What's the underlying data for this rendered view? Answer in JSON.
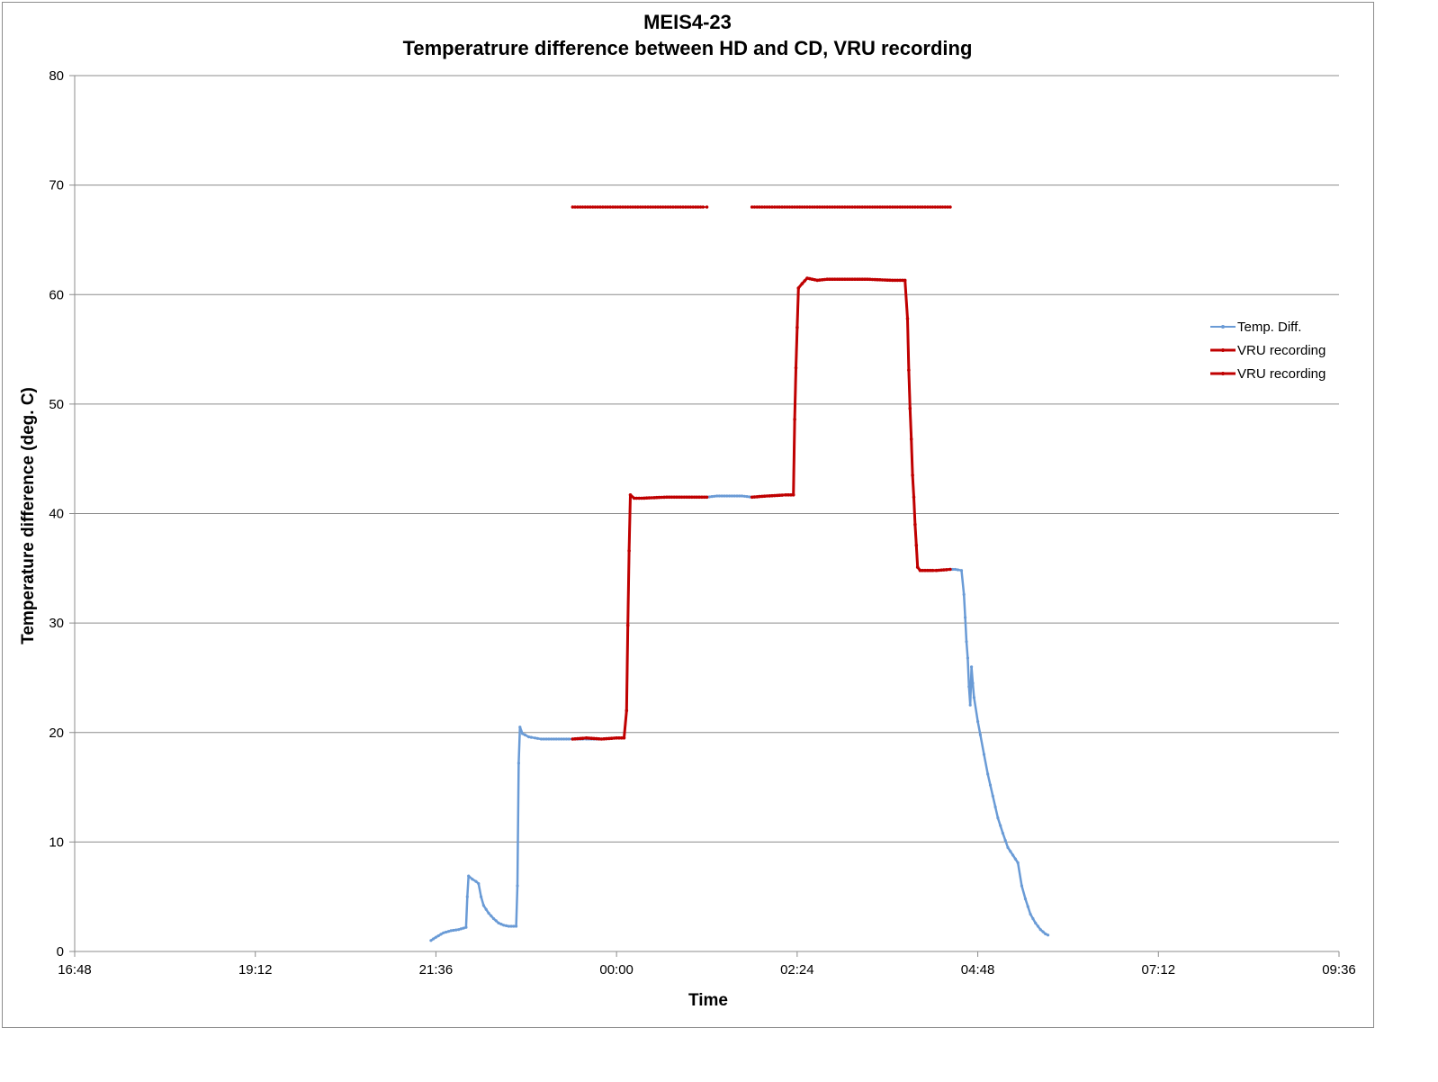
{
  "chart_data": {
    "type": "line",
    "title": "MEIS4-23",
    "subtitle": "Temperatrure difference between HD and CD, VRU recording",
    "xlabel": "Time",
    "ylabel": "Temperature difference (deg. C)",
    "ylim": [
      0,
      80
    ],
    "xlim": [
      "16:48",
      "09:36"
    ],
    "yticks": [
      "0",
      "10",
      "20",
      "30",
      "40",
      "50",
      "60",
      "70",
      "80"
    ],
    "xticks": [
      "16:48",
      "19:12",
      "21:36",
      "00:00",
      "02:24",
      "04:48",
      "07:12",
      "09:36"
    ],
    "grid": "horizontal",
    "legend_position": "right",
    "series": [
      {
        "name": "Temp. Diff.",
        "color": "#6a9bd6",
        "points": [
          [
            "21:32",
            1.0
          ],
          [
            "21:36",
            1.3
          ],
          [
            "21:42",
            1.7
          ],
          [
            "21:48",
            1.9
          ],
          [
            "21:54",
            2.0
          ],
          [
            "22:00",
            2.2
          ],
          [
            "22:01",
            5.0
          ],
          [
            "22:02",
            6.9
          ],
          [
            "22:05",
            6.6
          ],
          [
            "22:08",
            6.4
          ],
          [
            "22:10",
            6.2
          ],
          [
            "22:12",
            5.0
          ],
          [
            "22:14",
            4.2
          ],
          [
            "22:18",
            3.5
          ],
          [
            "22:22",
            3.0
          ],
          [
            "22:26",
            2.6
          ],
          [
            "22:30",
            2.4
          ],
          [
            "22:34",
            2.3
          ],
          [
            "22:40",
            2.3
          ],
          [
            "22:41",
            6.0
          ],
          [
            "22:42",
            17.2
          ],
          [
            "22:43",
            20.5
          ],
          [
            "22:45",
            19.9
          ],
          [
            "22:50",
            19.6
          ],
          [
            "22:55",
            19.5
          ],
          [
            "23:00",
            19.4
          ],
          [
            "23:10",
            19.4
          ],
          [
            "23:20",
            19.4
          ],
          [
            "23:25",
            19.4
          ],
          [
            "23:36",
            19.4
          ],
          [
            "23:48",
            19.4
          ],
          [
            "00:00",
            19.5
          ],
          [
            "00:06",
            19.5
          ],
          [
            "00:08",
            22.0
          ],
          [
            "00:09",
            29.8
          ],
          [
            "00:10",
            36.6
          ],
          [
            "00:11",
            41.7
          ],
          [
            "00:14",
            41.4
          ],
          [
            "00:20",
            41.4
          ],
          [
            "00:40",
            41.5
          ],
          [
            "01:00",
            41.5
          ],
          [
            "01:12",
            41.5
          ],
          [
            "01:20",
            41.6
          ],
          [
            "01:30",
            41.6
          ],
          [
            "01:40",
            41.6
          ],
          [
            "01:48",
            41.5
          ],
          [
            "02:00",
            41.6
          ],
          [
            "02:15",
            41.7
          ],
          [
            "02:21",
            41.7
          ],
          [
            "02:22",
            48.6
          ],
          [
            "02:23",
            53.3
          ],
          [
            "02:24",
            57.0
          ],
          [
            "02:25",
            60.6
          ],
          [
            "02:28",
            61.0
          ],
          [
            "02:32",
            61.5
          ],
          [
            "02:40",
            61.3
          ],
          [
            "02:48",
            61.4
          ],
          [
            "03:00",
            61.4
          ],
          [
            "03:20",
            61.4
          ],
          [
            "03:40",
            61.3
          ],
          [
            "03:50",
            61.3
          ],
          [
            "03:52",
            57.8
          ],
          [
            "03:53",
            53.1
          ],
          [
            "03:54",
            49.6
          ],
          [
            "03:55",
            46.8
          ],
          [
            "03:56",
            43.5
          ],
          [
            "03:57",
            41.5
          ],
          [
            "03:58",
            39.0
          ],
          [
            "03:59",
            37.1
          ],
          [
            "04:00",
            35.1
          ],
          [
            "04:02",
            34.8
          ],
          [
            "04:15",
            34.8
          ],
          [
            "04:26",
            34.9
          ],
          [
            "04:30",
            34.9
          ],
          [
            "04:35",
            34.8
          ],
          [
            "04:37",
            32.6
          ],
          [
            "04:38",
            30.5
          ],
          [
            "04:39",
            28.3
          ],
          [
            "04:40",
            26.8
          ],
          [
            "04:41",
            24.2
          ],
          [
            "04:42",
            22.5
          ],
          [
            "04:43",
            26.0
          ],
          [
            "04:44",
            24.5
          ],
          [
            "04:45",
            23.2
          ],
          [
            "04:48",
            21.0
          ],
          [
            "04:50",
            19.8
          ],
          [
            "04:53",
            18.0
          ],
          [
            "04:56",
            16.2
          ],
          [
            "05:00",
            14.2
          ],
          [
            "05:04",
            12.2
          ],
          [
            "05:08",
            10.8
          ],
          [
            "05:12",
            9.5
          ],
          [
            "05:16",
            8.8
          ],
          [
            "05:20",
            8.1
          ],
          [
            "05:23",
            6.0
          ],
          [
            "05:26",
            4.8
          ],
          [
            "05:30",
            3.4
          ],
          [
            "05:34",
            2.6
          ],
          [
            "05:38",
            2.0
          ],
          [
            "05:42",
            1.6
          ],
          [
            "05:44",
            1.5
          ]
        ]
      },
      {
        "name": "VRU recording",
        "color": "#c00000",
        "points": [
          [
            "23:25",
            19.4
          ],
          [
            "23:36",
            19.5
          ],
          [
            "23:48",
            19.4
          ],
          [
            "00:00",
            19.5
          ],
          [
            "00:06",
            19.5
          ],
          [
            "00:08",
            22.0
          ],
          [
            "00:09",
            29.8
          ],
          [
            "00:10",
            36.6
          ],
          [
            "00:11",
            41.7
          ],
          [
            "00:14",
            41.4
          ],
          [
            "00:20",
            41.4
          ],
          [
            "00:40",
            41.5
          ],
          [
            "01:00",
            41.5
          ],
          [
            "01:12",
            41.5
          ]
        ],
        "marker_points": [
          [
            "23:25",
            68
          ],
          [
            "01:12",
            68
          ]
        ]
      },
      {
        "name": "VRU recording",
        "color": "#c00000",
        "points": [
          [
            "01:48",
            41.5
          ],
          [
            "02:00",
            41.6
          ],
          [
            "02:15",
            41.7
          ],
          [
            "02:21",
            41.7
          ],
          [
            "02:22",
            48.6
          ],
          [
            "02:23",
            53.3
          ],
          [
            "02:24",
            57.0
          ],
          [
            "02:25",
            60.6
          ],
          [
            "02:28",
            61.0
          ],
          [
            "02:32",
            61.5
          ],
          [
            "02:40",
            61.3
          ],
          [
            "02:48",
            61.4
          ],
          [
            "03:00",
            61.4
          ],
          [
            "03:20",
            61.4
          ],
          [
            "03:40",
            61.3
          ],
          [
            "03:50",
            61.3
          ],
          [
            "03:52",
            57.8
          ],
          [
            "03:53",
            53.1
          ],
          [
            "03:54",
            49.6
          ],
          [
            "03:55",
            46.8
          ],
          [
            "03:56",
            43.5
          ],
          [
            "03:57",
            41.5
          ],
          [
            "03:58",
            39.0
          ],
          [
            "03:59",
            37.1
          ],
          [
            "04:00",
            35.1
          ],
          [
            "04:02",
            34.8
          ],
          [
            "04:15",
            34.8
          ],
          [
            "04:26",
            34.9
          ]
        ],
        "marker_points": [
          [
            "01:48",
            68
          ],
          [
            "04:26",
            68
          ]
        ]
      }
    ]
  }
}
